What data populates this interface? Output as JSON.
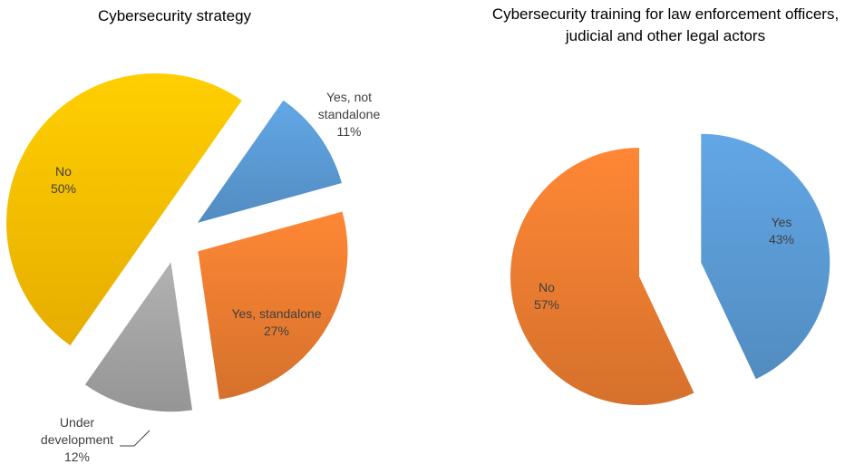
{
  "chart_data": [
    {
      "type": "pie",
      "title": "Cybersecurity strategy",
      "categories": [
        "Yes, not standalone",
        "Yes, standalone",
        "Under development",
        "No"
      ],
      "values": [
        11,
        27,
        12,
        50
      ],
      "value_labels": [
        "11%",
        "27%",
        "12%",
        "50%"
      ],
      "colors": [
        "#5b9bd5",
        "#ed7d31",
        "#a5a5a5",
        "#ffc000"
      ]
    },
    {
      "type": "pie",
      "title": "Cybersecurity training for law enforcement officers, judicial and other legal actors",
      "categories": [
        "Yes",
        "No"
      ],
      "values": [
        43,
        57
      ],
      "value_labels": [
        "43%",
        "57%"
      ],
      "colors": [
        "#5b9bd5",
        "#ed7d31"
      ]
    }
  ]
}
